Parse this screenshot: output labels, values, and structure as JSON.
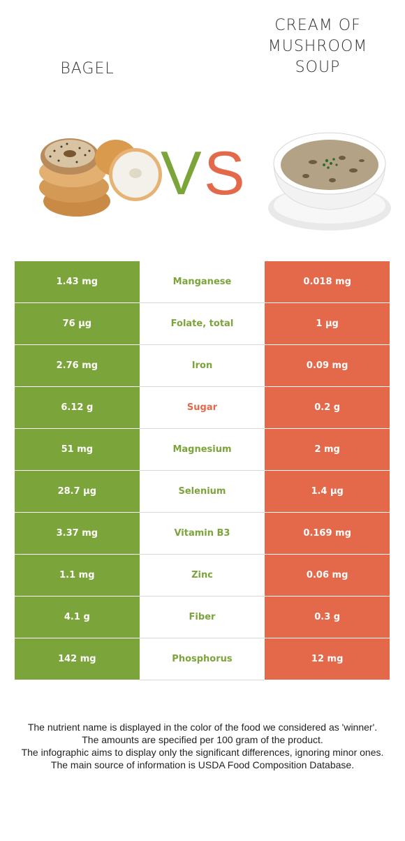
{
  "header": {
    "left_food": "BAGEL",
    "right_food": "CREAM OF\nMUSHROOM\nSOUP",
    "vs_left": "V",
    "vs_right": "S"
  },
  "colors": {
    "left": "#7ba43a",
    "right": "#e4694a"
  },
  "rows": [
    {
      "left": "1.43 mg",
      "name": "Manganese",
      "right": "0.018 mg",
      "winner": "left"
    },
    {
      "left": "76 µg",
      "name": "Folate, total",
      "right": "1 µg",
      "winner": "left"
    },
    {
      "left": "2.76 mg",
      "name": "Iron",
      "right": "0.09 mg",
      "winner": "left"
    },
    {
      "left": "6.12 g",
      "name": "Sugar",
      "right": "0.2 g",
      "winner": "right"
    },
    {
      "left": "51 mg",
      "name": "Magnesium",
      "right": "2 mg",
      "winner": "left"
    },
    {
      "left": "28.7 µg",
      "name": "Selenium",
      "right": "1.4 µg",
      "winner": "left"
    },
    {
      "left": "3.37 mg",
      "name": "Vitamin B3",
      "right": "0.169 mg",
      "winner": "left"
    },
    {
      "left": "1.1 mg",
      "name": "Zinc",
      "right": "0.06 mg",
      "winner": "left"
    },
    {
      "left": "4.1 g",
      "name": "Fiber",
      "right": "0.3 g",
      "winner": "left"
    },
    {
      "left": "142 mg",
      "name": "Phosphorus",
      "right": "12 mg",
      "winner": "left"
    }
  ],
  "footnote": {
    "line1": "The nutrient name is displayed in the color of the food we considered as 'winner'.",
    "line2": "The amounts are specified per 100 gram of the product.",
    "line3": "The infographic aims to display only the significant differences, ignoring minor ones.",
    "line4": "The main source of information is USDA Food Composition Database."
  }
}
